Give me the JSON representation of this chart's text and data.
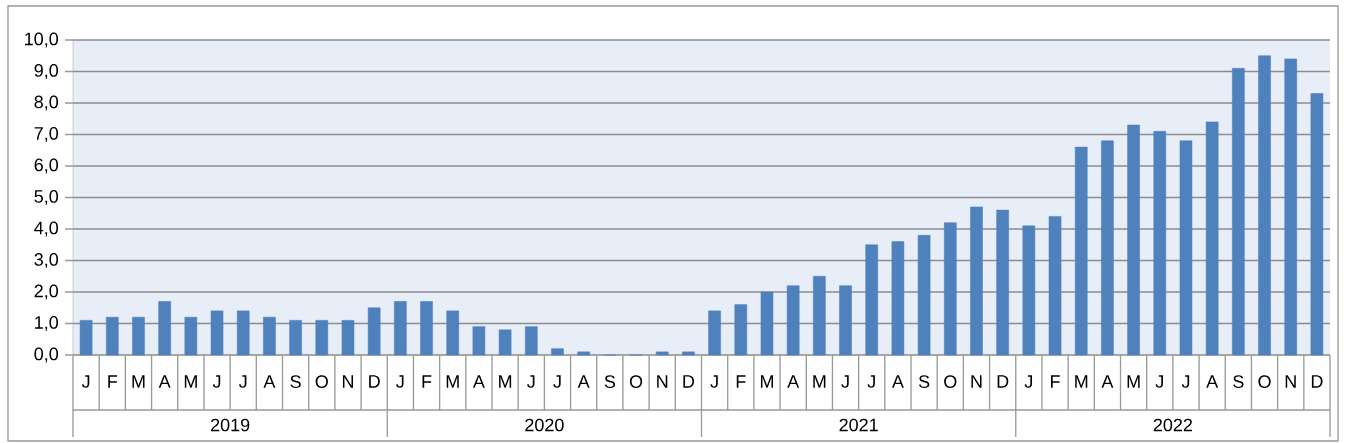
{
  "chart_data": {
    "type": "bar",
    "categories": [
      "J",
      "F",
      "M",
      "A",
      "M",
      "J",
      "J",
      "A",
      "S",
      "O",
      "N",
      "D",
      "J",
      "F",
      "M",
      "A",
      "M",
      "J",
      "J",
      "A",
      "S",
      "O",
      "N",
      "D",
      "J",
      "F",
      "M",
      "A",
      "M",
      "J",
      "J",
      "A",
      "S",
      "O",
      "N",
      "D",
      "J",
      "F",
      "M",
      "A",
      "M",
      "J",
      "J",
      "A",
      "S",
      "O",
      "N",
      "D"
    ],
    "values": [
      1.1,
      1.2,
      1.2,
      1.7,
      1.2,
      1.4,
      1.4,
      1.2,
      1.1,
      1.1,
      1.1,
      1.5,
      1.7,
      1.7,
      1.4,
      0.9,
      0.8,
      0.9,
      0.2,
      0.1,
      0,
      0,
      0.1,
      0.1,
      1.4,
      1.6,
      2.0,
      2.2,
      2.5,
      2.2,
      3.5,
      3.6,
      3.8,
      4.2,
      4.7,
      4.6,
      4.1,
      4.4,
      6.6,
      6.8,
      7.3,
      7.1,
      6.8,
      7.4,
      9.1,
      9.5,
      9.4,
      8.3
    ],
    "color": "#4f81bd",
    "annotations": [
      "2019",
      "2020",
      "2021",
      "2022"
    ],
    "ylim": [
      0,
      10
    ],
    "yticks": [
      {
        "value": 0,
        "label": "0,0"
      },
      {
        "value": 1,
        "label": "1,0"
      },
      {
        "value": 2,
        "label": "2,0"
      },
      {
        "value": 3,
        "label": "3,0"
      },
      {
        "value": 4,
        "label": "4,0"
      },
      {
        "value": 5,
        "label": "5,0"
      },
      {
        "value": 6,
        "label": "6,0"
      },
      {
        "value": 7,
        "label": "7,0"
      },
      {
        "value": 8,
        "label": "8,0"
      },
      {
        "value": 9,
        "label": "9,0"
      },
      {
        "value": 10,
        "label": "10,0"
      }
    ],
    "grid": "y"
  }
}
